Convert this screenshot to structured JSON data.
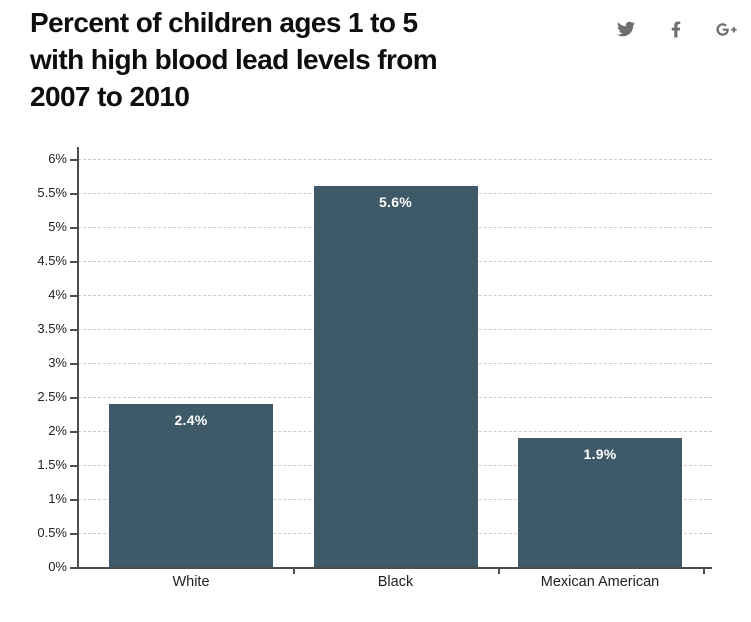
{
  "header": {
    "title": "Percent of children ages 1 to 5 with high blood lead levels from 2007 to 2010",
    "title_lines": [
      "Percent of children ages 1 to 5",
      "with high blood lead levels from",
      "2007 to 2010"
    ],
    "social_icons": [
      {
        "name": "twitter",
        "label": "Share on Twitter"
      },
      {
        "name": "facebook",
        "label": "Share on Facebook"
      },
      {
        "name": "google-plus",
        "label": "Share on Google+"
      }
    ]
  },
  "chart_data": {
    "type": "bar",
    "title": "Percent of children ages 1 to 5 with high blood lead levels from 2007 to 2010",
    "categories": [
      "White",
      "Black",
      "Mexican American"
    ],
    "values": [
      2.4,
      5.6,
      1.9
    ],
    "bar_labels": [
      "2.4%",
      "5.6%",
      "1.9%"
    ],
    "xlabel": "",
    "ylabel": "",
    "ylim": [
      0,
      6
    ],
    "ytick_step": 0.5,
    "yticks": [
      "0%",
      "0.5%",
      "1%",
      "1.5%",
      "2%",
      "2.5%",
      "3%",
      "3.5%",
      "4%",
      "4.5%",
      "5%",
      "5.5%",
      "6%"
    ],
    "grid": "horizontal-dashed",
    "legend": "none",
    "colors": {
      "bar": "#3e5968",
      "bar_label": "#ffffff",
      "grid": "#cccccc",
      "axis": "#4d4d4d",
      "tick_label": "#222222",
      "icon": "#6e6e6e"
    }
  }
}
